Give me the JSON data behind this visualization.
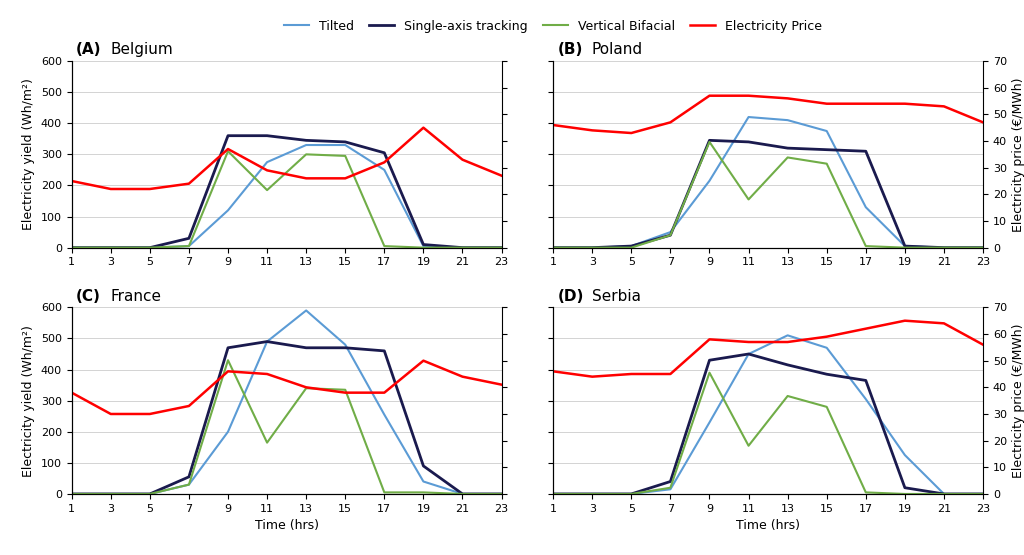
{
  "hours": [
    1,
    3,
    5,
    7,
    9,
    11,
    13,
    15,
    17,
    19,
    21,
    23
  ],
  "colors": {
    "tilted": "#5B9BD5",
    "single_axis": "#1A1A4E",
    "vertical_bifacial": "#70AD47",
    "electricity_price": "#FF0000"
  },
  "legend_labels": [
    "Tilted",
    "Single-axis tracking",
    "Vertical Bifacial",
    "Electricity Price"
  ],
  "ylabel_left": "Electricity yield (Wh/m²)",
  "ylabel_right": "Electricity price (€/MWh)",
  "xlabel": "Time (hrs)",
  "ylim_left": [
    0,
    600
  ],
  "ylim_right": [
    0,
    70
  ],
  "yticks_left": [
    0,
    100,
    200,
    300,
    400,
    500,
    600
  ],
  "yticks_right": [
    0,
    10,
    20,
    30,
    40,
    50,
    60,
    70
  ],
  "background_color": "#FFFFFF",
  "panels": {
    "(A) Belgium": {
      "tilted": [
        0,
        0,
        0,
        5,
        120,
        275,
        330,
        330,
        250,
        5,
        0,
        0
      ],
      "single_axis": [
        0,
        0,
        0,
        30,
        360,
        360,
        345,
        340,
        305,
        10,
        0,
        0
      ],
      "vertical_bifacial": [
        0,
        0,
        0,
        5,
        310,
        185,
        300,
        295,
        5,
        0,
        0,
        0
      ],
      "price": [
        25,
        22,
        22,
        24,
        37,
        29,
        26,
        26,
        32,
        45,
        33,
        27
      ]
    },
    "(B) Poland": {
      "tilted": [
        0,
        0,
        5,
        50,
        215,
        420,
        410,
        375,
        130,
        5,
        0,
        0
      ],
      "single_axis": [
        0,
        0,
        5,
        40,
        345,
        340,
        320,
        315,
        310,
        5,
        0,
        0
      ],
      "vertical_bifacial": [
        0,
        0,
        0,
        40,
        340,
        155,
        290,
        270,
        5,
        0,
        0,
        0
      ],
      "price": [
        46,
        44,
        43,
        47,
        57,
        57,
        56,
        54,
        54,
        54,
        53,
        47
      ]
    },
    "(C) France": {
      "tilted": [
        0,
        0,
        0,
        30,
        200,
        490,
        590,
        480,
        255,
        40,
        0,
        0
      ],
      "single_axis": [
        0,
        0,
        0,
        55,
        470,
        490,
        470,
        470,
        460,
        90,
        0,
        0
      ],
      "vertical_bifacial": [
        0,
        0,
        0,
        30,
        430,
        165,
        340,
        335,
        5,
        5,
        0,
        0
      ],
      "price": [
        38,
        30,
        30,
        33,
        46,
        45,
        40,
        38,
        38,
        50,
        44,
        41
      ]
    },
    "(D) Serbia": {
      "tilted": [
        0,
        0,
        0,
        15,
        230,
        450,
        510,
        470,
        305,
        125,
        0,
        0
      ],
      "single_axis": [
        0,
        0,
        0,
        40,
        430,
        450,
        415,
        385,
        365,
        20,
        0,
        0
      ],
      "vertical_bifacial": [
        0,
        0,
        0,
        20,
        390,
        155,
        315,
        280,
        5,
        0,
        0,
        0
      ],
      "price": [
        46,
        44,
        45,
        45,
        58,
        57,
        57,
        59,
        62,
        65,
        64,
        56
      ]
    }
  }
}
